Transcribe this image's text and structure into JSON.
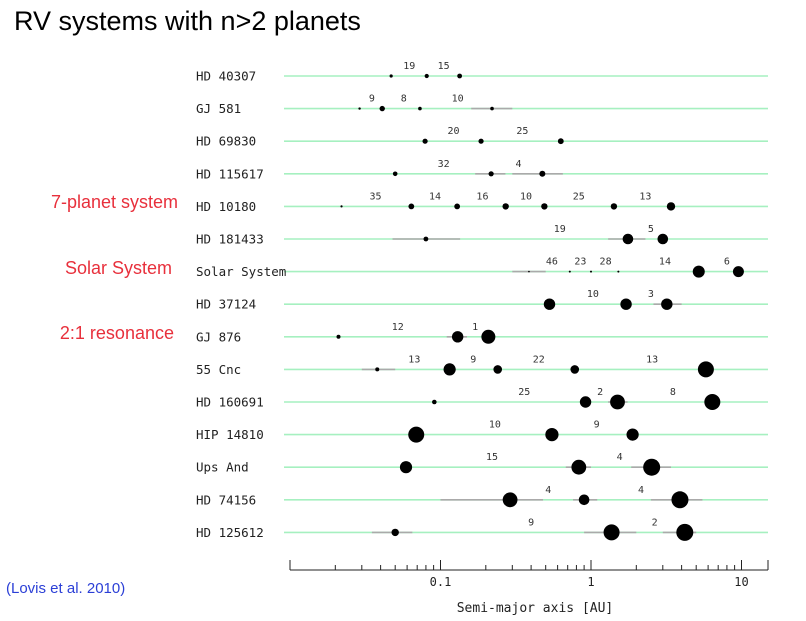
{
  "slide": {
    "title": "RV systems with n>2 planets",
    "annotations": [
      {
        "text": "7-planet system",
        "row": "HD 10180"
      },
      {
        "text": "Solar System",
        "row": "Solar System"
      },
      {
        "text": "2:1 resonance",
        "row": "GJ 876"
      }
    ],
    "citation": "(Lovis et al. 2010)"
  },
  "colors": {
    "row_line": "#a6f0c0",
    "point": "#000000",
    "error_bar": "#aaaaaa",
    "annotation": "#e8303c",
    "citation": "#2b3fd6"
  },
  "chart_data": {
    "type": "scatter",
    "xscale": "log",
    "xlim": [
      0.01,
      15
    ],
    "xlabel": "Semi-major axis [AU]",
    "xticks": [
      0.1,
      1,
      10
    ],
    "xtick_labels": [
      "0.1",
      "1",
      "10"
    ],
    "size_note": "marker size grows with planet mass",
    "systems": [
      {
        "name": "HD 40307",
        "planets": [
          {
            "a": 0.047,
            "s": 1.6
          },
          {
            "a": 0.081,
            "s": 2.1
          },
          {
            "a": 0.134,
            "s": 2.4
          }
        ],
        "labels": [
          {
            "a": 0.062,
            "text": "19"
          },
          {
            "a": 0.105,
            "text": "15"
          }
        ]
      },
      {
        "name": "GJ 581",
        "planets": [
          {
            "a": 0.029,
            "s": 1.2
          },
          {
            "a": 0.041,
            "s": 2.7
          },
          {
            "a": 0.073,
            "s": 1.8
          },
          {
            "a": 0.22,
            "s": 1.8,
            "err": [
              0.16,
              0.3
            ]
          }
        ],
        "labels": [
          {
            "a": 0.035,
            "text": "9"
          },
          {
            "a": 0.057,
            "text": "8"
          },
          {
            "a": 0.13,
            "text": "10"
          }
        ]
      },
      {
        "name": "HD 69830",
        "planets": [
          {
            "a": 0.079,
            "s": 2.6
          },
          {
            "a": 0.186,
            "s": 2.6
          },
          {
            "a": 0.63,
            "s": 2.9
          }
        ],
        "labels": [
          {
            "a": 0.122,
            "text": "20"
          },
          {
            "a": 0.35,
            "text": "25"
          }
        ]
      },
      {
        "name": "HD 115617",
        "planets": [
          {
            "a": 0.05,
            "s": 2.3
          },
          {
            "a": 0.217,
            "s": 2.6,
            "err": [
              0.17,
              0.27
            ]
          },
          {
            "a": 0.475,
            "s": 3.0,
            "err": [
              0.3,
              0.65
            ]
          }
        ],
        "labels": [
          {
            "a": 0.105,
            "text": "32"
          },
          {
            "a": 0.33,
            "text": "4"
          }
        ]
      },
      {
        "name": "HD 10180",
        "planets": [
          {
            "a": 0.022,
            "s": 1.1
          },
          {
            "a": 0.064,
            "s": 2.9
          },
          {
            "a": 0.129,
            "s": 2.9
          },
          {
            "a": 0.271,
            "s": 3.2
          },
          {
            "a": 0.49,
            "s": 3.2
          },
          {
            "a": 1.42,
            "s": 3.2
          },
          {
            "a": 3.4,
            "s": 4.2
          }
        ],
        "labels": [
          {
            "a": 0.037,
            "text": "35"
          },
          {
            "a": 0.092,
            "text": "14"
          },
          {
            "a": 0.19,
            "text": "16"
          },
          {
            "a": 0.37,
            "text": "10"
          },
          {
            "a": 0.83,
            "text": "25"
          },
          {
            "a": 2.3,
            "text": "13"
          }
        ]
      },
      {
        "name": "HD 181433",
        "planets": [
          {
            "a": 0.08,
            "s": 2.4,
            "err": [
              0.048,
              0.135
            ]
          },
          {
            "a": 1.76,
            "s": 5.3,
            "err": [
              1.3,
              2.3
            ]
          },
          {
            "a": 3.0,
            "s": 5.3
          }
        ],
        "labels": [
          {
            "a": 0.62,
            "text": "19"
          },
          {
            "a": 2.5,
            "text": "5"
          }
        ]
      },
      {
        "name": "Solar System",
        "planets": [
          {
            "a": 0.387,
            "s": 0.8,
            "err": [
              0.3,
              0.5
            ]
          },
          {
            "a": 0.723,
            "s": 1.0
          },
          {
            "a": 1.0,
            "s": 1.0
          },
          {
            "a": 1.52,
            "s": 1.0
          },
          {
            "a": 5.2,
            "s": 6.0
          },
          {
            "a": 9.54,
            "s": 5.5
          }
        ],
        "labels": [
          {
            "a": 0.55,
            "text": "46"
          },
          {
            "a": 0.85,
            "text": "23"
          },
          {
            "a": 1.25,
            "text": "28"
          },
          {
            "a": 3.1,
            "text": "14"
          },
          {
            "a": 8.0,
            "text": "6"
          }
        ]
      },
      {
        "name": "HD 37124",
        "planets": [
          {
            "a": 0.53,
            "s": 5.7
          },
          {
            "a": 1.71,
            "s": 5.7
          },
          {
            "a": 3.19,
            "s": 5.7,
            "err": [
              2.6,
              4.0
            ]
          }
        ],
        "labels": [
          {
            "a": 1.03,
            "text": "10"
          },
          {
            "a": 2.5,
            "text": "3"
          }
        ]
      },
      {
        "name": "GJ 876",
        "planets": [
          {
            "a": 0.021,
            "s": 2.0
          },
          {
            "a": 0.13,
            "s": 5.7,
            "err": [
              0.11,
              0.15
            ]
          },
          {
            "a": 0.208,
            "s": 7.0
          }
        ],
        "labels": [
          {
            "a": 0.052,
            "text": "12"
          },
          {
            "a": 0.17,
            "text": "1"
          }
        ]
      },
      {
        "name": "55 Cnc",
        "planets": [
          {
            "a": 0.038,
            "s": 2.0,
            "err": [
              0.03,
              0.05
            ]
          },
          {
            "a": 0.115,
            "s": 6.1
          },
          {
            "a": 0.24,
            "s": 4.3
          },
          {
            "a": 0.78,
            "s": 4.3
          },
          {
            "a": 5.8,
            "s": 8.0
          }
        ],
        "labels": [
          {
            "a": 0.067,
            "text": "13"
          },
          {
            "a": 0.165,
            "text": "9"
          },
          {
            "a": 0.45,
            "text": "22"
          },
          {
            "a": 2.55,
            "text": "13"
          }
        ]
      },
      {
        "name": "HD 160691",
        "planets": [
          {
            "a": 0.091,
            "s": 2.3
          },
          {
            "a": 0.92,
            "s": 5.7
          },
          {
            "a": 1.5,
            "s": 7.4,
            "err": [
              1.3,
              1.75
            ]
          },
          {
            "a": 6.4,
            "s": 8.0
          }
        ],
        "labels": [
          {
            "a": 0.36,
            "text": "25"
          },
          {
            "a": 1.15,
            "text": "2"
          },
          {
            "a": 3.5,
            "text": "8"
          }
        ]
      },
      {
        "name": "HIP 14810",
        "planets": [
          {
            "a": 0.069,
            "s": 8.0
          },
          {
            "a": 0.55,
            "s": 6.6
          },
          {
            "a": 1.89,
            "s": 6.1
          }
        ],
        "labels": [
          {
            "a": 0.23,
            "text": "10"
          },
          {
            "a": 1.09,
            "text": "9"
          }
        ]
      },
      {
        "name": "Ups And",
        "planets": [
          {
            "a": 0.059,
            "s": 6.1
          },
          {
            "a": 0.83,
            "s": 7.4,
            "err": [
              0.68,
              1.0
            ]
          },
          {
            "a": 2.53,
            "s": 8.5,
            "err": [
              1.85,
              3.4
            ]
          }
        ],
        "labels": [
          {
            "a": 0.22,
            "text": "15"
          },
          {
            "a": 1.55,
            "text": "4"
          }
        ]
      },
      {
        "name": "HD 74156",
        "planets": [
          {
            "a": 0.29,
            "s": 7.4,
            "err": [
              0.1,
              0.48
            ]
          },
          {
            "a": 0.9,
            "s": 5.3,
            "err": [
              0.76,
              1.1
            ]
          },
          {
            "a": 3.9,
            "s": 8.5,
            "err": [
              2.5,
              5.5
            ]
          }
        ],
        "labels": [
          {
            "a": 0.52,
            "text": "4"
          },
          {
            "a": 2.15,
            "text": "4"
          }
        ]
      },
      {
        "name": "HD 125612",
        "planets": [
          {
            "a": 0.05,
            "s": 3.7,
            "err": [
              0.035,
              0.065
            ]
          },
          {
            "a": 1.37,
            "s": 8.0,
            "err": [
              0.9,
              2.0
            ]
          },
          {
            "a": 4.2,
            "s": 8.5,
            "err": [
              3.0,
              5.0
            ]
          }
        ],
        "labels": [
          {
            "a": 0.4,
            "text": "9"
          },
          {
            "a": 2.65,
            "text": "2"
          }
        ]
      }
    ]
  }
}
